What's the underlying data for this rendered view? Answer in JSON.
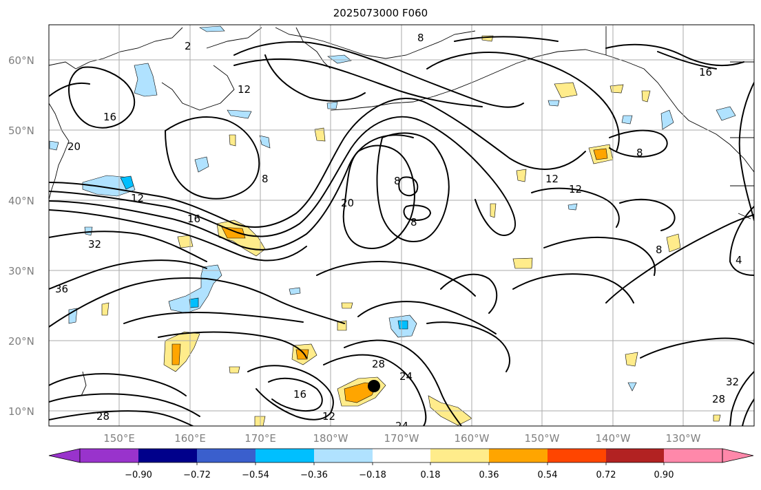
{
  "title": "2025073000 F060",
  "map": {
    "lat_labels": [
      "60°N",
      "50°N",
      "40°N",
      "30°N",
      "20°N",
      "10°N"
    ],
    "lon_labels": [
      "150°E",
      "160°E",
      "170°E",
      "180°W",
      "170°W",
      "160°W",
      "150°W",
      "140°W",
      "130°W"
    ],
    "contour_labels": [
      "2",
      "8",
      "16",
      "20",
      "12",
      "8",
      "16",
      "32",
      "36",
      "20",
      "8",
      "8",
      "12",
      "12",
      "8",
      "8",
      "16",
      "4",
      "12",
      "28",
      "24",
      "16",
      "12",
      "28",
      "32",
      "28",
      "24"
    ],
    "marker": "storm-center-dot"
  },
  "colorbar": {
    "ticks": [
      "−0.90",
      "−0.72",
      "−0.54",
      "−0.36",
      "−0.18",
      "0.18",
      "0.36",
      "0.54",
      "0.72",
      "0.90"
    ],
    "colors": [
      "#9933cc",
      "#00008b",
      "#3a5fcd",
      "#00bfff",
      "#b0e2ff",
      "#ffffff",
      "#ffec8b",
      "#ffa500",
      "#ff4500",
      "#b22222",
      "#ff88aa"
    ]
  },
  "colors": {
    "negative_fill_light": "#b0e2ff",
    "negative_fill": "#00bfff",
    "positive_fill_light": "#ffec8b",
    "positive_fill": "#ffa500",
    "grid": "#aaaaaa",
    "contour": "#000000"
  }
}
